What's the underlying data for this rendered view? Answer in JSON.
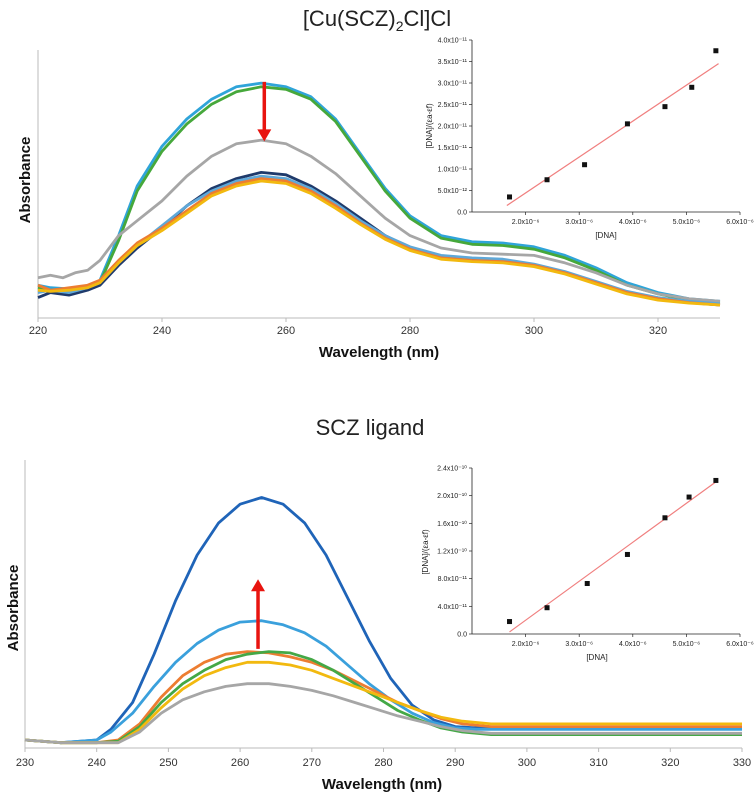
{
  "chart_data": [
    {
      "type": "line",
      "title": "[Cu(SCZ)2Cl]Cl",
      "title_main": "[Cu(SCZ)",
      "title_sub": "2",
      "title_tail": "Cl]Cl",
      "xlabel": "Wavelength (nm)",
      "ylabel": "Absorbance",
      "xlim": [
        220,
        330
      ],
      "ylim": [
        0,
        1
      ],
      "xticks": [
        220,
        240,
        260,
        280,
        300,
        320
      ],
      "xtick_labels": [
        "220",
        "240",
        "260",
        "280",
        "300",
        "320"
      ],
      "arrow": {
        "direction": "down",
        "x": 256.5,
        "from": 0.92,
        "to": 0.68
      },
      "series": [
        {
          "name": "teal",
          "color": "#2FA4D9",
          "x": [
            220,
            222,
            225,
            228,
            230,
            233,
            236,
            240,
            244,
            248,
            252,
            256,
            260,
            264,
            268,
            272,
            276,
            280,
            285,
            290,
            295,
            300,
            305,
            310,
            315,
            320,
            325,
            330
          ],
          "y": [
            0.1,
            0.09,
            0.085,
            0.09,
            0.12,
            0.3,
            0.5,
            0.66,
            0.77,
            0.85,
            0.9,
            0.915,
            0.9,
            0.86,
            0.77,
            0.63,
            0.49,
            0.38,
            0.3,
            0.275,
            0.27,
            0.255,
            0.22,
            0.17,
            0.11,
            0.07,
            0.045,
            0.035
          ]
        },
        {
          "name": "green",
          "color": "#46A83B",
          "x": [
            220,
            222,
            225,
            228,
            230,
            233,
            236,
            240,
            244,
            248,
            252,
            256,
            260,
            264,
            268,
            272,
            276,
            280,
            285,
            290,
            295,
            300,
            305,
            310,
            315,
            320,
            325,
            330
          ],
          "y": [
            0.09,
            0.08,
            0.08,
            0.09,
            0.11,
            0.28,
            0.48,
            0.64,
            0.75,
            0.83,
            0.88,
            0.9,
            0.89,
            0.85,
            0.76,
            0.62,
            0.48,
            0.37,
            0.29,
            0.265,
            0.26,
            0.245,
            0.21,
            0.16,
            0.1,
            0.065,
            0.04,
            0.03
          ]
        },
        {
          "name": "gray",
          "color": "#A6A6A6",
          "x": [
            220,
            222,
            224,
            226,
            228,
            230,
            233,
            236,
            240,
            244,
            248,
            252,
            256,
            260,
            264,
            268,
            272,
            276,
            280,
            285,
            290,
            295,
            300,
            305,
            310,
            315,
            320,
            325,
            330
          ],
          "y": [
            0.13,
            0.14,
            0.13,
            0.15,
            0.16,
            0.2,
            0.3,
            0.36,
            0.44,
            0.54,
            0.62,
            0.67,
            0.685,
            0.67,
            0.62,
            0.55,
            0.46,
            0.37,
            0.3,
            0.25,
            0.23,
            0.225,
            0.22,
            0.19,
            0.15,
            0.1,
            0.065,
            0.045,
            0.035
          ]
        },
        {
          "name": "navy",
          "color": "#1F3A6B",
          "x": [
            220,
            222,
            225,
            228,
            230,
            233,
            236,
            240,
            244,
            248,
            252,
            256,
            260,
            264,
            268,
            272,
            276,
            280,
            285,
            290,
            295,
            300,
            305,
            310,
            315,
            320,
            325,
            330
          ],
          "y": [
            0.05,
            0.07,
            0.06,
            0.08,
            0.1,
            0.18,
            0.25,
            0.33,
            0.42,
            0.49,
            0.53,
            0.555,
            0.545,
            0.5,
            0.44,
            0.37,
            0.3,
            0.25,
            0.215,
            0.205,
            0.2,
            0.18,
            0.15,
            0.11,
            0.07,
            0.045,
            0.03,
            0.02
          ]
        },
        {
          "name": "lightblue",
          "color": "#5FA8D8",
          "x": [
            220,
            222,
            225,
            228,
            230,
            233,
            236,
            240,
            244,
            248,
            252,
            256,
            260,
            264,
            268,
            272,
            276,
            280,
            285,
            290,
            295,
            300,
            305,
            310,
            315,
            320,
            325,
            330
          ],
          "y": [
            0.07,
            0.08,
            0.07,
            0.09,
            0.11,
            0.19,
            0.26,
            0.34,
            0.42,
            0.48,
            0.52,
            0.54,
            0.53,
            0.49,
            0.43,
            0.36,
            0.3,
            0.255,
            0.22,
            0.21,
            0.205,
            0.185,
            0.155,
            0.115,
            0.075,
            0.05,
            0.035,
            0.025
          ]
        },
        {
          "name": "orange",
          "color": "#ED7D31",
          "x": [
            220,
            222,
            225,
            228,
            230,
            233,
            236,
            240,
            244,
            248,
            252,
            256,
            260,
            264,
            268,
            272,
            276,
            280,
            285,
            290,
            295,
            300,
            305,
            310,
            315,
            320,
            325,
            330
          ],
          "y": [
            0.1,
            0.08,
            0.09,
            0.1,
            0.12,
            0.2,
            0.27,
            0.33,
            0.4,
            0.47,
            0.51,
            0.53,
            0.52,
            0.48,
            0.42,
            0.35,
            0.29,
            0.245,
            0.21,
            0.2,
            0.195,
            0.18,
            0.15,
            0.11,
            0.07,
            0.045,
            0.03,
            0.02
          ]
        },
        {
          "name": "yellow",
          "color": "#F2B90F",
          "x": [
            220,
            222,
            225,
            228,
            230,
            233,
            236,
            240,
            244,
            248,
            252,
            256,
            260,
            264,
            268,
            272,
            276,
            280,
            285,
            290,
            295,
            300,
            305,
            310,
            315,
            320,
            325,
            330
          ],
          "y": [
            0.08,
            0.075,
            0.08,
            0.09,
            0.11,
            0.19,
            0.26,
            0.32,
            0.39,
            0.46,
            0.5,
            0.52,
            0.51,
            0.47,
            0.41,
            0.345,
            0.285,
            0.24,
            0.205,
            0.195,
            0.19,
            0.175,
            0.145,
            0.105,
            0.065,
            0.04,
            0.028,
            0.02
          ]
        }
      ],
      "inset": {
        "type": "scatter",
        "xlabel": "[DNA]",
        "ylabel": "[DNA]/(εa-εf)",
        "xlim": [
          1e-06,
          6e-06
        ],
        "ylim": [
          0,
          4e-11
        ],
        "xtick_values": [
          2e-06,
          3e-06,
          4e-06,
          5e-06,
          6e-06
        ],
        "xtick_labels": [
          "2.0x10⁻⁶",
          "3.0x10⁻⁶",
          "4.0x10⁻⁶",
          "5.0x10⁻⁶",
          "6.0x10⁻⁶"
        ],
        "ytick_values": [
          0,
          5e-12,
          1e-11,
          1.5e-11,
          2e-11,
          2.5e-11,
          3e-11,
          3.5e-11,
          4e-11
        ],
        "ytick_labels": [
          "0.0",
          "5.0x10⁻¹²",
          "1.0x10⁻¹¹",
          "1.5x10⁻¹¹",
          "2.0x10⁻¹¹",
          "2.5x10⁻¹¹",
          "3.0x10⁻¹¹",
          "3.5x10⁻¹¹",
          "4.0x10⁻¹¹"
        ],
        "points_x": [
          1.7e-06,
          2.4e-06,
          3.1e-06,
          3.9e-06,
          4.6e-06,
          5.1e-06,
          5.55e-06
        ],
        "points_y": [
          3.5e-12,
          7.5e-12,
          1.1e-11,
          2.05e-11,
          2.45e-11,
          2.9e-11,
          3.75e-11
        ],
        "fit": {
          "x": [
            1.65e-06,
            5.6e-06
          ],
          "y": [
            1.5e-12,
            3.45e-11
          ],
          "color": "#F07F7F"
        }
      }
    },
    {
      "type": "line",
      "title": "SCZ ligand",
      "xlabel": "Wavelength (nm)",
      "ylabel": "Absorbance",
      "xlim": [
        230,
        330
      ],
      "ylim": [
        0,
        1
      ],
      "xticks": [
        230,
        240,
        250,
        260,
        270,
        280,
        290,
        300,
        310,
        320,
        330
      ],
      "xtick_labels": [
        "230",
        "240",
        "250",
        "260",
        "270",
        "280",
        "290",
        "300",
        "310",
        "320",
        "330"
      ],
      "arrow": {
        "direction": "up",
        "x": 262.5,
        "from": 0.34,
        "to": 0.6
      },
      "series": [
        {
          "name": "blue",
          "color": "#1F64B8",
          "x": [
            230,
            235,
            240,
            242,
            245,
            248,
            251,
            254,
            257,
            260,
            263,
            266,
            269,
            272,
            275,
            278,
            281,
            284,
            287,
            290,
            293,
            296,
            300,
            310,
            320,
            330
          ],
          "y": [
            0.0,
            -0.01,
            0.0,
            0.04,
            0.14,
            0.32,
            0.52,
            0.69,
            0.81,
            0.88,
            0.905,
            0.88,
            0.81,
            0.69,
            0.53,
            0.37,
            0.23,
            0.13,
            0.075,
            0.05,
            0.045,
            0.045,
            0.045,
            0.045,
            0.045,
            0.045
          ]
        },
        {
          "name": "teal",
          "color": "#3AA0DC",
          "x": [
            230,
            235,
            240,
            242,
            245,
            248,
            251,
            254,
            257,
            260,
            263,
            266,
            269,
            272,
            275,
            278,
            281,
            284,
            287,
            290,
            293,
            296,
            300,
            310,
            320,
            330
          ],
          "y": [
            0.0,
            -0.01,
            0.0,
            0.03,
            0.1,
            0.2,
            0.29,
            0.36,
            0.41,
            0.44,
            0.445,
            0.43,
            0.4,
            0.35,
            0.28,
            0.21,
            0.15,
            0.1,
            0.065,
            0.045,
            0.04,
            0.04,
            0.04,
            0.04,
            0.04,
            0.04
          ]
        },
        {
          "name": "orange",
          "color": "#ED7D31",
          "x": [
            230,
            235,
            240,
            243,
            246,
            249,
            252,
            255,
            258,
            261,
            264,
            267,
            270,
            273,
            276,
            279,
            282,
            285,
            288,
            291,
            295,
            300,
            310,
            320,
            330
          ],
          "y": [
            0.0,
            -0.01,
            -0.01,
            0.0,
            0.06,
            0.16,
            0.24,
            0.29,
            0.32,
            0.33,
            0.325,
            0.31,
            0.29,
            0.26,
            0.22,
            0.18,
            0.14,
            0.11,
            0.08,
            0.06,
            0.05,
            0.05,
            0.05,
            0.05,
            0.05
          ]
        },
        {
          "name": "green",
          "color": "#44A846",
          "x": [
            230,
            235,
            240,
            243,
            246,
            249,
            252,
            255,
            258,
            261,
            264,
            267,
            270,
            273,
            276,
            279,
            282,
            285,
            288,
            291,
            295,
            300,
            310,
            320,
            330
          ],
          "y": [
            0.0,
            -0.01,
            -0.01,
            -0.005,
            0.05,
            0.14,
            0.21,
            0.26,
            0.3,
            0.32,
            0.33,
            0.325,
            0.3,
            0.26,
            0.21,
            0.16,
            0.11,
            0.075,
            0.045,
            0.03,
            0.02,
            0.02,
            0.02,
            0.02,
            0.02
          ]
        },
        {
          "name": "yellow",
          "color": "#F2B90F",
          "x": [
            230,
            235,
            240,
            243,
            246,
            249,
            252,
            255,
            258,
            261,
            264,
            267,
            270,
            273,
            276,
            279,
            282,
            285,
            288,
            291,
            295,
            300,
            310,
            320,
            330
          ],
          "y": [
            0.0,
            -0.01,
            -0.01,
            -0.01,
            0.04,
            0.12,
            0.19,
            0.24,
            0.27,
            0.29,
            0.29,
            0.28,
            0.26,
            0.23,
            0.2,
            0.17,
            0.14,
            0.11,
            0.085,
            0.07,
            0.06,
            0.06,
            0.06,
            0.06,
            0.06
          ]
        },
        {
          "name": "gray",
          "color": "#A6A6A6",
          "x": [
            230,
            235,
            240,
            243,
            246,
            249,
            252,
            255,
            258,
            261,
            264,
            267,
            270,
            273,
            276,
            279,
            282,
            285,
            288,
            291,
            295,
            300,
            310,
            320,
            330
          ],
          "y": [
            0.0,
            -0.01,
            -0.01,
            -0.01,
            0.03,
            0.1,
            0.15,
            0.18,
            0.2,
            0.21,
            0.21,
            0.2,
            0.185,
            0.165,
            0.14,
            0.115,
            0.09,
            0.07,
            0.05,
            0.035,
            0.025,
            0.025,
            0.025,
            0.025,
            0.025
          ]
        }
      ],
      "inset": {
        "type": "scatter",
        "xlabel": "[DNA]",
        "ylabel": "[DNA]/(εa-εf)",
        "xlim": [
          1e-06,
          6e-06
        ],
        "ylim": [
          0,
          2.4e-10
        ],
        "xtick_values": [
          2e-06,
          3e-06,
          4e-06,
          5e-06,
          6e-06
        ],
        "xtick_labels": [
          "2.0x10⁻⁶",
          "3.0x10⁻⁶",
          "4.0x10⁻⁶",
          "5.0x10⁻⁶",
          "6.0x10⁻⁶"
        ],
        "ytick_values": [
          0,
          4e-11,
          8e-11,
          1.2e-10,
          1.6e-10,
          2e-10,
          2.4e-10
        ],
        "ytick_labels": [
          "0.0",
          "4.0x10⁻¹¹",
          "8.0x10⁻¹¹",
          "1.2x10⁻¹⁰",
          "1.6x10⁻¹⁰",
          "2.0x10⁻¹⁰",
          "2.4x10⁻¹⁰"
        ],
        "points_x": [
          1.7e-06,
          2.4e-06,
          3.15e-06,
          3.9e-06,
          4.6e-06,
          5.05e-06,
          5.55e-06
        ],
        "points_y": [
          1.8e-11,
          3.8e-11,
          7.3e-11,
          1.15e-10,
          1.68e-10,
          1.98e-10,
          2.22e-10
        ],
        "fit": {
          "x": [
            1.7e-06,
            5.55e-06
          ],
          "y": [
            3e-12,
            2.2e-10
          ],
          "color": "#F07F7F"
        }
      }
    }
  ]
}
